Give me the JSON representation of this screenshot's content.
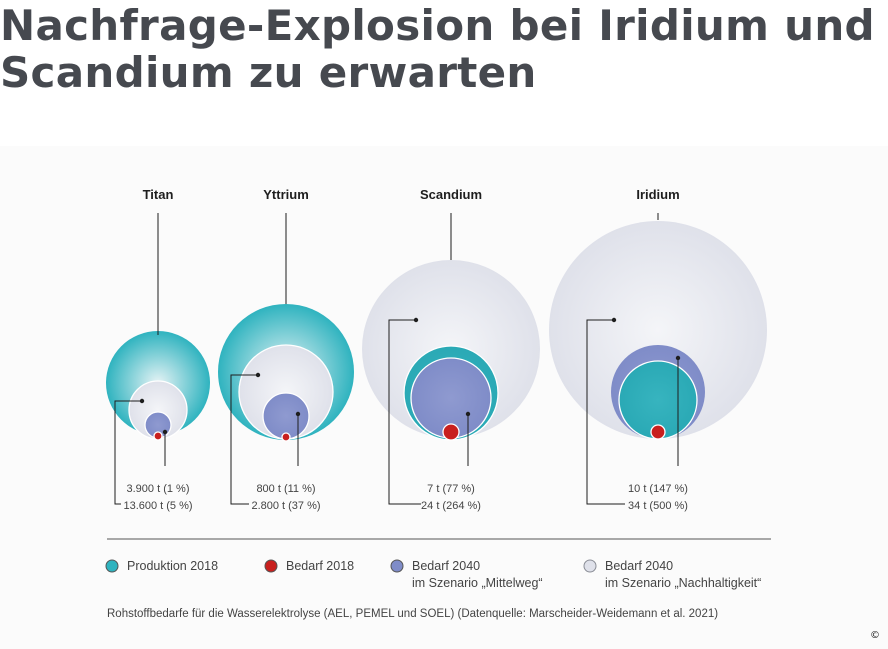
{
  "headline": "Nachfrage-Explosion bei Iridium und Scandium zu erwarten",
  "copyright": "©",
  "caption": "Rohstoffbedarfe für die Wasserelektrolyse (AEL, PEMEL und SOEL) (Datenquelle: Marscheider-Weidemann et al. 2021)",
  "colors": {
    "produktion_2018": "#2fb3bf",
    "bedarf_2018": "#c8201e",
    "bedarf_2040_mittelweg": "#7f8cc8",
    "bedarf_2040_nachhaltigkeit": "#dfe1ea"
  },
  "legend": [
    {
      "key": "produktion_2018",
      "line1": "Produktion 2018",
      "line2": ""
    },
    {
      "key": "bedarf_2018",
      "line1": "Bedarf 2018",
      "line2": ""
    },
    {
      "key": "bedarf_2040_mittelweg",
      "line1": "Bedarf 2040",
      "line2": "im Szenario „Mittelweg“"
    },
    {
      "key": "bedarf_2040_nachhaltigkeit",
      "line1": "Bedarf 2040",
      "line2": "im Szenario „Nachhaltigkeit“"
    }
  ],
  "chart_data": {
    "type": "bubble",
    "unit": "t",
    "series": [
      "Produktion 2018",
      "Bedarf 2018",
      "Bedarf 2040 im Szenario „Mittelweg“",
      "Bedarf 2040 im Szenario „Nachhaltigkeit“"
    ],
    "elements": [
      {
        "name": "Titan",
        "label_mittelweg": "3.900 t (1 %)",
        "label_nachhaltigkeit": "13.600 t (5 %)",
        "bedarf_2040_mittelweg": 3900,
        "bedarf_2040_nachhaltigkeit": 13600,
        "pct_mittelweg": 1,
        "pct_nachhaltigkeit": 5
      },
      {
        "name": "Yttrium",
        "label_mittelweg": "800 t (11 %)",
        "label_nachhaltigkeit": "2.800 t (37 %)",
        "bedarf_2040_mittelweg": 800,
        "bedarf_2040_nachhaltigkeit": 2800,
        "pct_mittelweg": 11,
        "pct_nachhaltigkeit": 37
      },
      {
        "name": "Scandium",
        "label_mittelweg": "7 t (77 %)",
        "label_nachhaltigkeit": "24 t (264 %)",
        "bedarf_2040_mittelweg": 7,
        "bedarf_2040_nachhaltigkeit": 24,
        "pct_mittelweg": 77,
        "pct_nachhaltigkeit": 264
      },
      {
        "name": "Iridium",
        "label_mittelweg": "10 t (147 %)",
        "label_nachhaltigkeit": "34 t (500 %)",
        "bedarf_2040_mittelweg": 10,
        "bedarf_2040_nachhaltigkeit": 34,
        "pct_mittelweg": 147,
        "pct_nachhaltigkeit": 500
      }
    ]
  }
}
